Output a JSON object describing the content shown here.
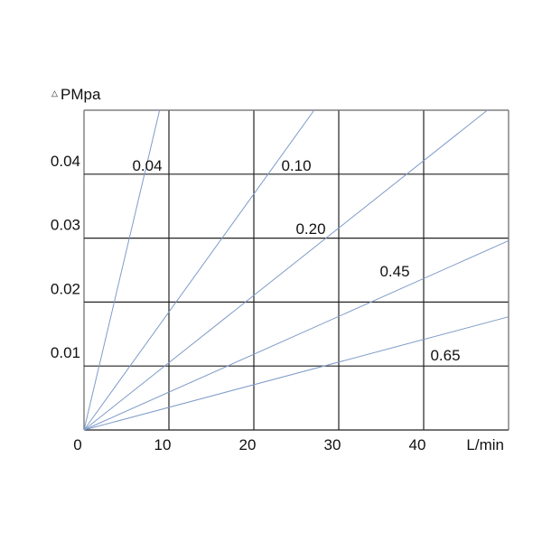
{
  "chart_data": {
    "type": "line",
    "ylabel_symbol": "△",
    "ylabel": "PMpa",
    "xlabel": "L/min",
    "xlim": [
      0,
      50
    ],
    "ylim": [
      0,
      0.05
    ],
    "grid": true,
    "x_ticks": [
      "0",
      "10",
      "20",
      "30",
      "40"
    ],
    "y_ticks": [
      "0.01",
      "0.02",
      "0.03",
      "0.04"
    ],
    "line_color": "#7f9cc8",
    "series": [
      {
        "name": "0.04",
        "points": [
          [
            0,
            0
          ],
          [
            8.9,
            0.05
          ]
        ]
      },
      {
        "name": "0.10",
        "points": [
          [
            0,
            0
          ],
          [
            27.1,
            0.05
          ]
        ]
      },
      {
        "name": "0.20",
        "points": [
          [
            0,
            0
          ],
          [
            47.5,
            0.05
          ]
        ]
      },
      {
        "name": "0.45",
        "points": [
          [
            0,
            0
          ],
          [
            50,
            0.0296
          ]
        ]
      },
      {
        "name": "0.65",
        "points": [
          [
            0,
            0
          ],
          [
            50,
            0.0177
          ]
        ]
      }
    ]
  }
}
